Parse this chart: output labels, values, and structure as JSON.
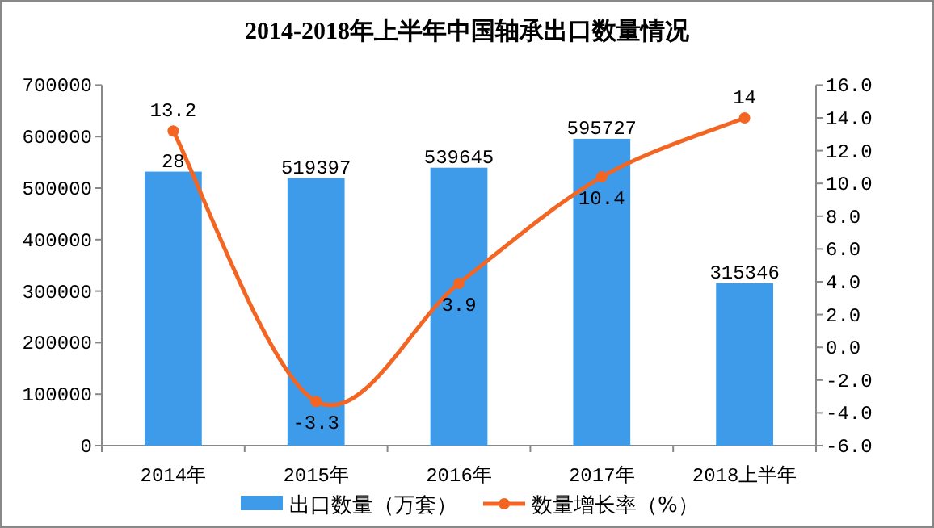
{
  "chart_data": {
    "type": "bar",
    "title": "2014-2018年上半年中国轴承出口数量情况",
    "categories": [
      "2014年",
      "2015年",
      "2016年",
      "2017年",
      "2018上半年"
    ],
    "series": [
      {
        "name": "出口数量（万套）",
        "color": "#3d9be9",
        "values": [
          532000,
          519397,
          539645,
          595727,
          315346
        ],
        "value_labels": [
          null,
          "519397",
          "539645",
          "595727",
          "315346"
        ]
      },
      {
        "name": "数量增长率（%）",
        "type": "line",
        "axis": "y2",
        "color": "#f26522",
        "values": [
          13.2,
          -3.3,
          3.9,
          10.4,
          14
        ],
        "value_labels": [
          "13.2",
          "-3.3",
          "3.9",
          "10.4",
          "14"
        ]
      }
    ],
    "ylim": [
      0,
      700000
    ],
    "yticks": [
      0,
      100000,
      200000,
      300000,
      400000,
      500000,
      600000,
      700000
    ],
    "y2lim": [
      -6,
      16
    ],
    "y2ticks": [
      {
        "value": -6,
        "label": "-6.0"
      },
      {
        "value": -4,
        "label": "-4.0"
      },
      {
        "value": -2,
        "label": "-2.0"
      },
      {
        "value": 0,
        "label": "0.0"
      },
      {
        "value": 2,
        "label": "2.0"
      },
      {
        "value": 4,
        "label": "4.0"
      },
      {
        "value": 6,
        "label": "6.0"
      },
      {
        "value": 8,
        "label": "8.0"
      },
      {
        "value": 10,
        "label": "10.0"
      },
      {
        "value": 12,
        "label": "12.0"
      },
      {
        "value": 14,
        "label": "14.0"
      },
      {
        "value": 16,
        "label": "16.0"
      }
    ],
    "annotations": [
      {
        "text": "28",
        "x": "2014年",
        "y": 532000
      }
    ],
    "marker": "circle",
    "legend": "bottom",
    "grid": false
  }
}
